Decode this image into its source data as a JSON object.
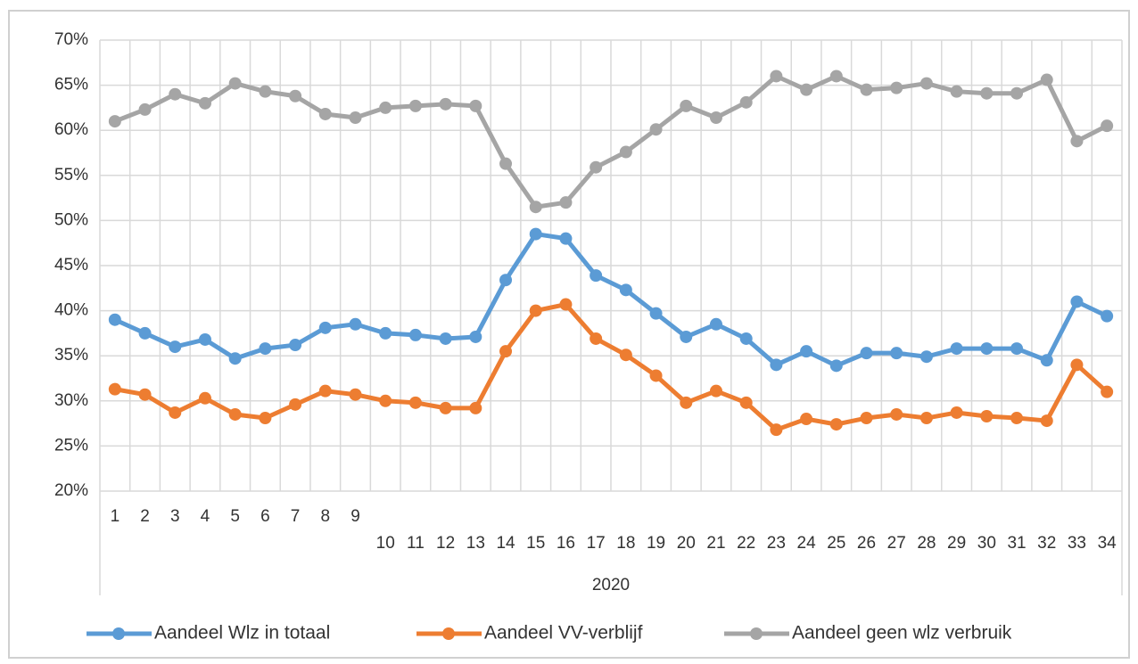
{
  "chart_data": {
    "type": "line",
    "categories": [
      "1",
      "2",
      "3",
      "4",
      "5",
      "6",
      "7",
      "8",
      "9",
      "10",
      "11",
      "12",
      "13",
      "14",
      "15",
      "16",
      "17",
      "18",
      "19",
      "20",
      "21",
      "22",
      "23",
      "24",
      "25",
      "26",
      "27",
      "28",
      "29",
      "30",
      "31",
      "32",
      "33",
      "34"
    ],
    "xlabel": "2020",
    "series": [
      {
        "name": "Aandeel Wlz in totaal",
        "color": "#5b9bd5",
        "values": [
          39,
          37.5,
          36,
          36.8,
          34.7,
          35.8,
          36.2,
          38.1,
          38.5,
          37.5,
          37.3,
          36.9,
          37.1,
          43.4,
          48.5,
          48,
          43.9,
          42.3,
          39.7,
          37.1,
          38.5,
          36.9,
          34,
          35.5,
          33.9,
          35.3,
          35.3,
          34.9,
          35.8,
          35.8,
          35.8,
          34.5,
          41,
          39.4
        ]
      },
      {
        "name": "Aandeel VV-verblijf",
        "color": "#ed7d31",
        "values": [
          31.3,
          30.7,
          28.7,
          30.3,
          28.5,
          28.1,
          29.6,
          31.1,
          30.7,
          30,
          29.8,
          29.2,
          29.2,
          35.5,
          40,
          40.7,
          36.9,
          35.1,
          32.8,
          29.8,
          31.1,
          29.8,
          26.8,
          28,
          27.4,
          28.1,
          28.5,
          28.1,
          28.7,
          28.3,
          28.1,
          27.8,
          34,
          31
        ]
      },
      {
        "name": "Aandeel geen wlz verbruik",
        "color": "#a5a5a5",
        "values": [
          61,
          62.3,
          64,
          63,
          65.2,
          64.3,
          63.8,
          61.8,
          61.4,
          62.5,
          62.7,
          62.9,
          62.7,
          56.3,
          51.5,
          52,
          55.9,
          57.6,
          60.1,
          62.7,
          61.4,
          63.1,
          66,
          64.5,
          66,
          64.5,
          64.7,
          65.2,
          64.3,
          64.1,
          64.1,
          65.6,
          58.8,
          60.5
        ]
      }
    ],
    "ylim": [
      20,
      70
    ],
    "yticks": [
      {
        "value": 20,
        "label": "20%"
      },
      {
        "value": 25,
        "label": "25%"
      },
      {
        "value": 30,
        "label": "30%"
      },
      {
        "value": 35,
        "label": "35%"
      },
      {
        "value": 40,
        "label": "40%"
      },
      {
        "value": 45,
        "label": "45%"
      },
      {
        "value": 50,
        "label": "50%"
      },
      {
        "value": 55,
        "label": "55%"
      },
      {
        "value": 60,
        "label": "60%"
      },
      {
        "value": 65,
        "label": "65%"
      },
      {
        "value": 70,
        "label": "70%"
      }
    ],
    "grid": true,
    "legend": "bottom"
  }
}
